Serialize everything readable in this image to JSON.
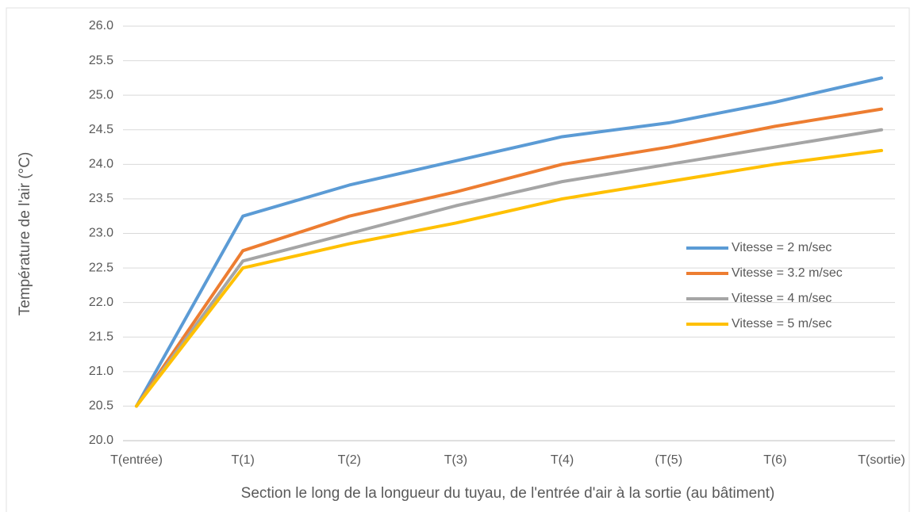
{
  "chart_data": {
    "type": "line",
    "x_label": "Section le long de la longueur du tuyau, de l'entrée d'air à la sortie (au bâtiment)",
    "y_label": "Température de l'air (°C)",
    "categories": [
      "T(entrée)",
      "T(1)",
      "T(2)",
      "T(3)",
      "T(4)",
      "(T(5)",
      "T(6)",
      "T(sortie)"
    ],
    "series": [
      {
        "name": "Vitesse = 2 m/sec",
        "color": "#5b9bd5",
        "values": [
          20.5,
          23.25,
          23.7,
          24.05,
          24.4,
          24.6,
          24.9,
          25.25
        ]
      },
      {
        "name": "Vitesse = 3.2 m/sec",
        "color": "#ed7d31",
        "values": [
          20.5,
          22.75,
          23.25,
          23.6,
          24.0,
          24.25,
          24.55,
          24.8
        ]
      },
      {
        "name": "Vitesse = 4 m/sec",
        "color": "#a5a5a5",
        "values": [
          20.5,
          22.6,
          23.0,
          23.4,
          23.75,
          24.0,
          24.25,
          24.5
        ]
      },
      {
        "name": "Vitesse = 5 m/sec",
        "color": "#ffc000",
        "values": [
          20.5,
          22.5,
          22.85,
          23.15,
          23.5,
          23.75,
          24.0,
          24.2
        ]
      }
    ],
    "ylim": [
      20,
      26
    ],
    "yticks": [
      {
        "value": 20,
        "label": "20.0"
      },
      20.5,
      {
        "value": 21,
        "label": "21.0"
      },
      21.5,
      {
        "value": 22,
        "label": "22.0"
      },
      22.5,
      {
        "value": 23,
        "label": "23.0"
      },
      23.5,
      {
        "value": 24,
        "label": "24.0"
      },
      24.5,
      {
        "value": 25,
        "label": "25.0"
      },
      25.5,
      {
        "value": 26,
        "label": "26.0"
      }
    ],
    "grid": true,
    "legend": "right"
  }
}
